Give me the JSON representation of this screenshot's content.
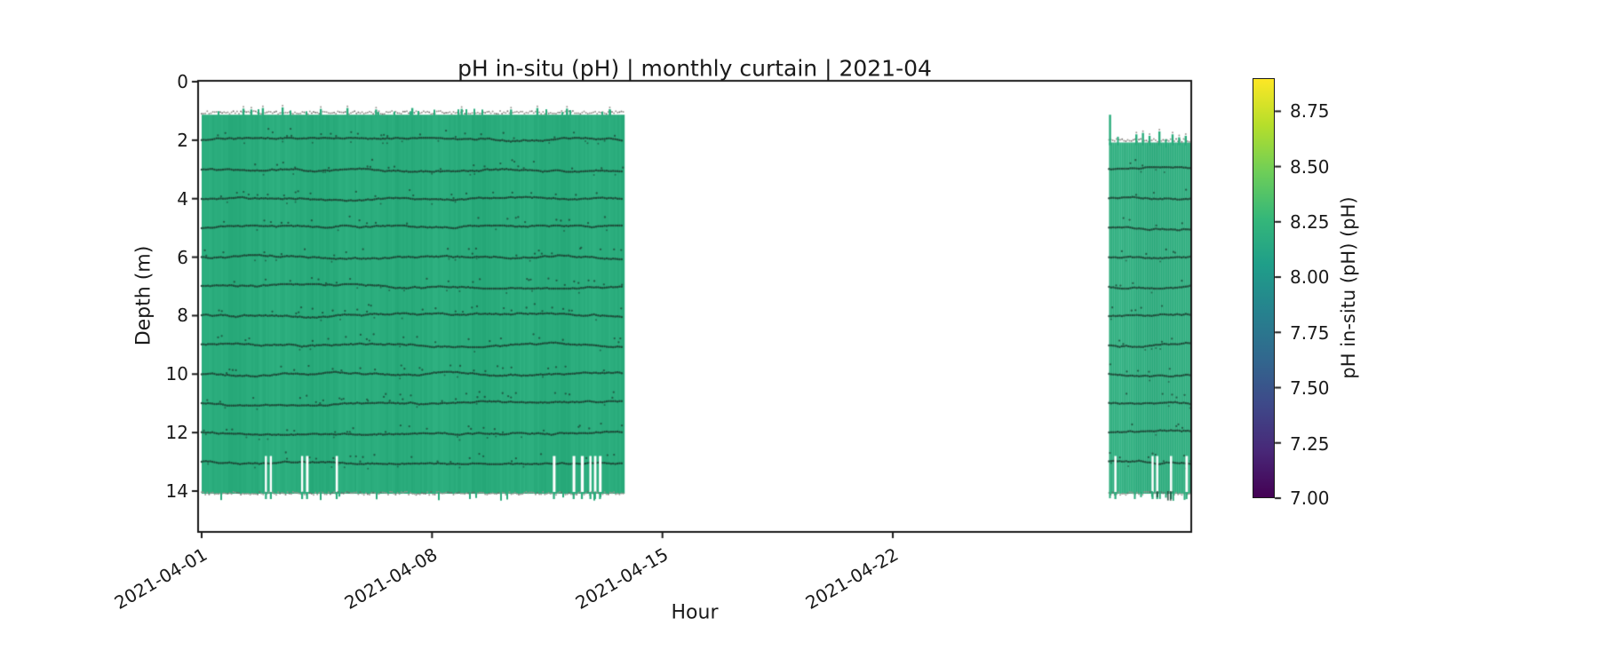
{
  "chart_data": {
    "type": "scatter",
    "title": "pH in-situ (pH) | monthly curtain | 2021-04",
    "xlabel": "Hour",
    "ylabel": "Depth (m)",
    "x_tick_labels": [
      "2021-04-01",
      "2021-04-08",
      "2021-04-15",
      "2021-04-22"
    ],
    "x_tick_days": [
      0,
      7,
      14,
      21
    ],
    "x_range_days": [
      -0.11,
      30.07
    ],
    "y_tick_labels": [
      "0",
      "2",
      "4",
      "6",
      "8",
      "10",
      "12",
      "14"
    ],
    "y_ticks": [
      0,
      2,
      4,
      6,
      8,
      10,
      12,
      14
    ],
    "y_range_depth_m": [
      15.4,
      0
    ],
    "value_color_hex": "#2aac7c",
    "typical_ph_value": 8.2,
    "blocks": [
      {
        "name": "deployment-1",
        "start_day": 0.0,
        "end_day": 12.82,
        "top_depth_m": 1.1,
        "bottom_depth_m": 14.0,
        "sensor_line_depths_m": [
          2,
          3,
          4,
          5,
          6,
          7,
          8,
          9,
          10,
          11,
          12,
          13
        ],
        "surface_spike_days": [
          1.27,
          1.51,
          1.86,
          2.46,
          3.62,
          4.43,
          5.3,
          6.4,
          7.9,
          9.4,
          10.2,
          11.1,
          12.4
        ],
        "surface_spike_top_depths_m": [
          0.92,
          0.95,
          0.9,
          0.88,
          0.93,
          0.9,
          0.95,
          0.9,
          0.93,
          0.95,
          0.9,
          0.92,
          0.94
        ],
        "bottom_gap_days": [
          1.95,
          2.1,
          3.05,
          3.2,
          4.1,
          10.7,
          11.3,
          11.55,
          11.81,
          11.95,
          12.1
        ],
        "bottom_gap_top_depth_m": 12.8,
        "dense_bottom_notch_range_days": null,
        "seed": 11
      },
      {
        "name": "deployment-2",
        "start_day": 27.57,
        "end_day": 30.07,
        "top_depth_m": 2.05,
        "bottom_depth_m": 14.0,
        "sensor_line_depths_m": [
          3,
          4,
          5,
          6,
          7,
          8,
          9,
          10,
          11,
          12,
          13
        ],
        "surface_spike_days": [
          27.6,
          28.4,
          28.6,
          28.8,
          29.1,
          29.5,
          29.7,
          29.9
        ],
        "surface_spike_top_depths_m": [
          1.13,
          1.8,
          1.75,
          1.85,
          1.7,
          1.8,
          1.9,
          1.85
        ],
        "bottom_gap_days": [
          27.76,
          28.89,
          29.03,
          29.45,
          29.92
        ],
        "bottom_gap_top_depth_m": 12.8,
        "dense_bottom_notch_range_days": [
          28.85,
          29.55
        ],
        "seed": 77
      }
    ],
    "data_gap_period_days": [
      12.82,
      27.57
    ],
    "colorbar": {
      "label": "pH in-situ (pH) (pH)",
      "tick_labels": [
        "8.75",
        "8.50",
        "8.25",
        "8.00",
        "7.75",
        "7.50",
        "7.25",
        "7.00"
      ],
      "ticks": [
        8.75,
        8.5,
        8.25,
        8.0,
        7.75,
        7.5,
        7.25,
        7.0
      ],
      "range": [
        7.0,
        8.9
      ],
      "colormap": "viridis"
    }
  },
  "colors": {
    "axis": "#1a1a1a",
    "curtain_green": [
      42,
      172,
      124
    ],
    "sensor_dot": "rgba(28,62,48,0.85)",
    "edge_speckle": "rgba(150,147,142,0.95)",
    "viridis_stops": [
      "#440154",
      "#482878",
      "#3e4989",
      "#31688e",
      "#26828e",
      "#1f9e89",
      "#35b779",
      "#6ece58",
      "#b5de2b",
      "#fde725"
    ]
  }
}
